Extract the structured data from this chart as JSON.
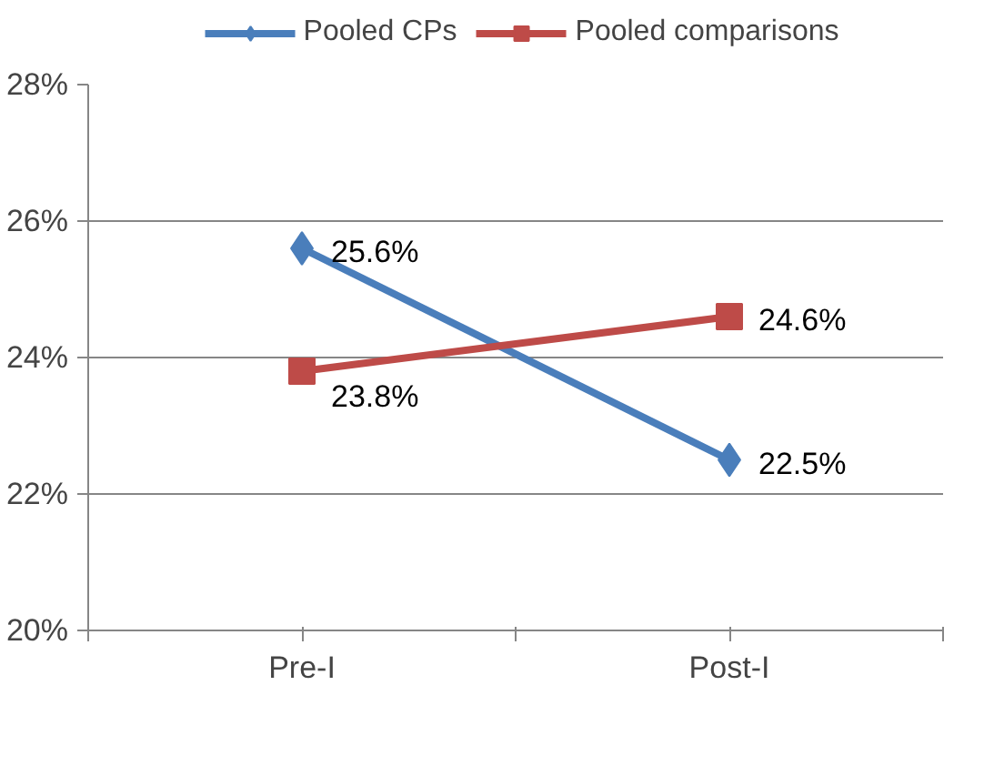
{
  "chart_data": {
    "type": "line",
    "categories": [
      "Pre-I",
      "Post-I"
    ],
    "series": [
      {
        "name": "Pooled CPs",
        "color": "#4a7ebb",
        "marker": "diamond",
        "values": [
          25.6,
          22.5
        ],
        "value_labels": [
          "25.6%",
          "22.5%"
        ]
      },
      {
        "name": "Pooled comparisons",
        "color": "#be4b48",
        "marker": "square",
        "values": [
          23.8,
          24.6
        ],
        "value_labels": [
          "23.8%",
          "24.6%"
        ]
      }
    ],
    "ylim": [
      20,
      28
    ],
    "yticks": [
      {
        "value": 20,
        "label": "20%"
      },
      {
        "value": 22,
        "label": "22%"
      },
      {
        "value": 24,
        "label": "24%"
      },
      {
        "value": 26,
        "label": "26%"
      },
      {
        "value": 28,
        "label": "28%"
      }
    ],
    "grid": "y",
    "legend": "top"
  }
}
